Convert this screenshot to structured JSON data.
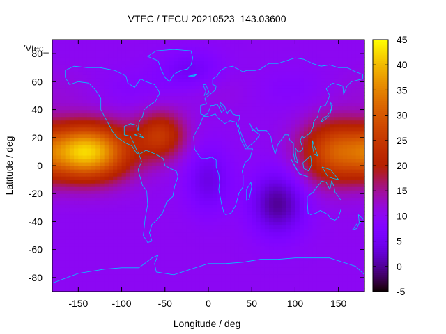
{
  "chart_data": {
    "type": "heatmap",
    "title": "VTEC / TECU 20210523_143.03600",
    "xlabel": "Longitude / deg",
    "ylabel": "Latitude / deg",
    "series_label": "'Vtec_",
    "xlim": [
      -180,
      180
    ],
    "ylim": [
      -90,
      90
    ],
    "x_ticks": [
      -150,
      -100,
      -50,
      0,
      50,
      100,
      150
    ],
    "y_ticks": [
      -80,
      -60,
      -40,
      -20,
      0,
      20,
      40,
      60,
      80
    ],
    "colorbar": {
      "min": -5,
      "max": 45,
      "ticks": [
        -5,
        0,
        5,
        10,
        15,
        20,
        25,
        30,
        35,
        40,
        45
      ],
      "palette": "gnuplot-pm3d-default"
    },
    "background_level": 10,
    "features": [
      {
        "name": "equatorial-anomaly-pacific-west",
        "lon": -140,
        "lat": 10,
        "value": 42,
        "sigma_lon": 35,
        "sigma_lat": 14
      },
      {
        "name": "equatorial-anomaly-south-america",
        "lon": -55,
        "lat": 22,
        "value": 24,
        "sigma_lon": 20,
        "sigma_lat": 12
      },
      {
        "name": "equatorial-anomaly-west-pacific",
        "lon": 145,
        "lat": 10,
        "value": 28,
        "sigma_lon": 28,
        "sigma_lat": 16
      },
      {
        "name": "trough-indian-ocean",
        "lon": 80,
        "lat": -27,
        "value": 0,
        "sigma_lon": 22,
        "sigma_lat": 16
      },
      {
        "name": "trough-atlantic",
        "lon": 0,
        "lat": -10,
        "value": 4,
        "sigma_lon": 18,
        "sigma_lat": 16
      },
      {
        "name": "trough-north-atlantic",
        "lon": -20,
        "lat": 68,
        "value": 5,
        "sigma_lon": 25,
        "sigma_lat": 10
      }
    ],
    "coastlines_color": "#00c8ff"
  }
}
